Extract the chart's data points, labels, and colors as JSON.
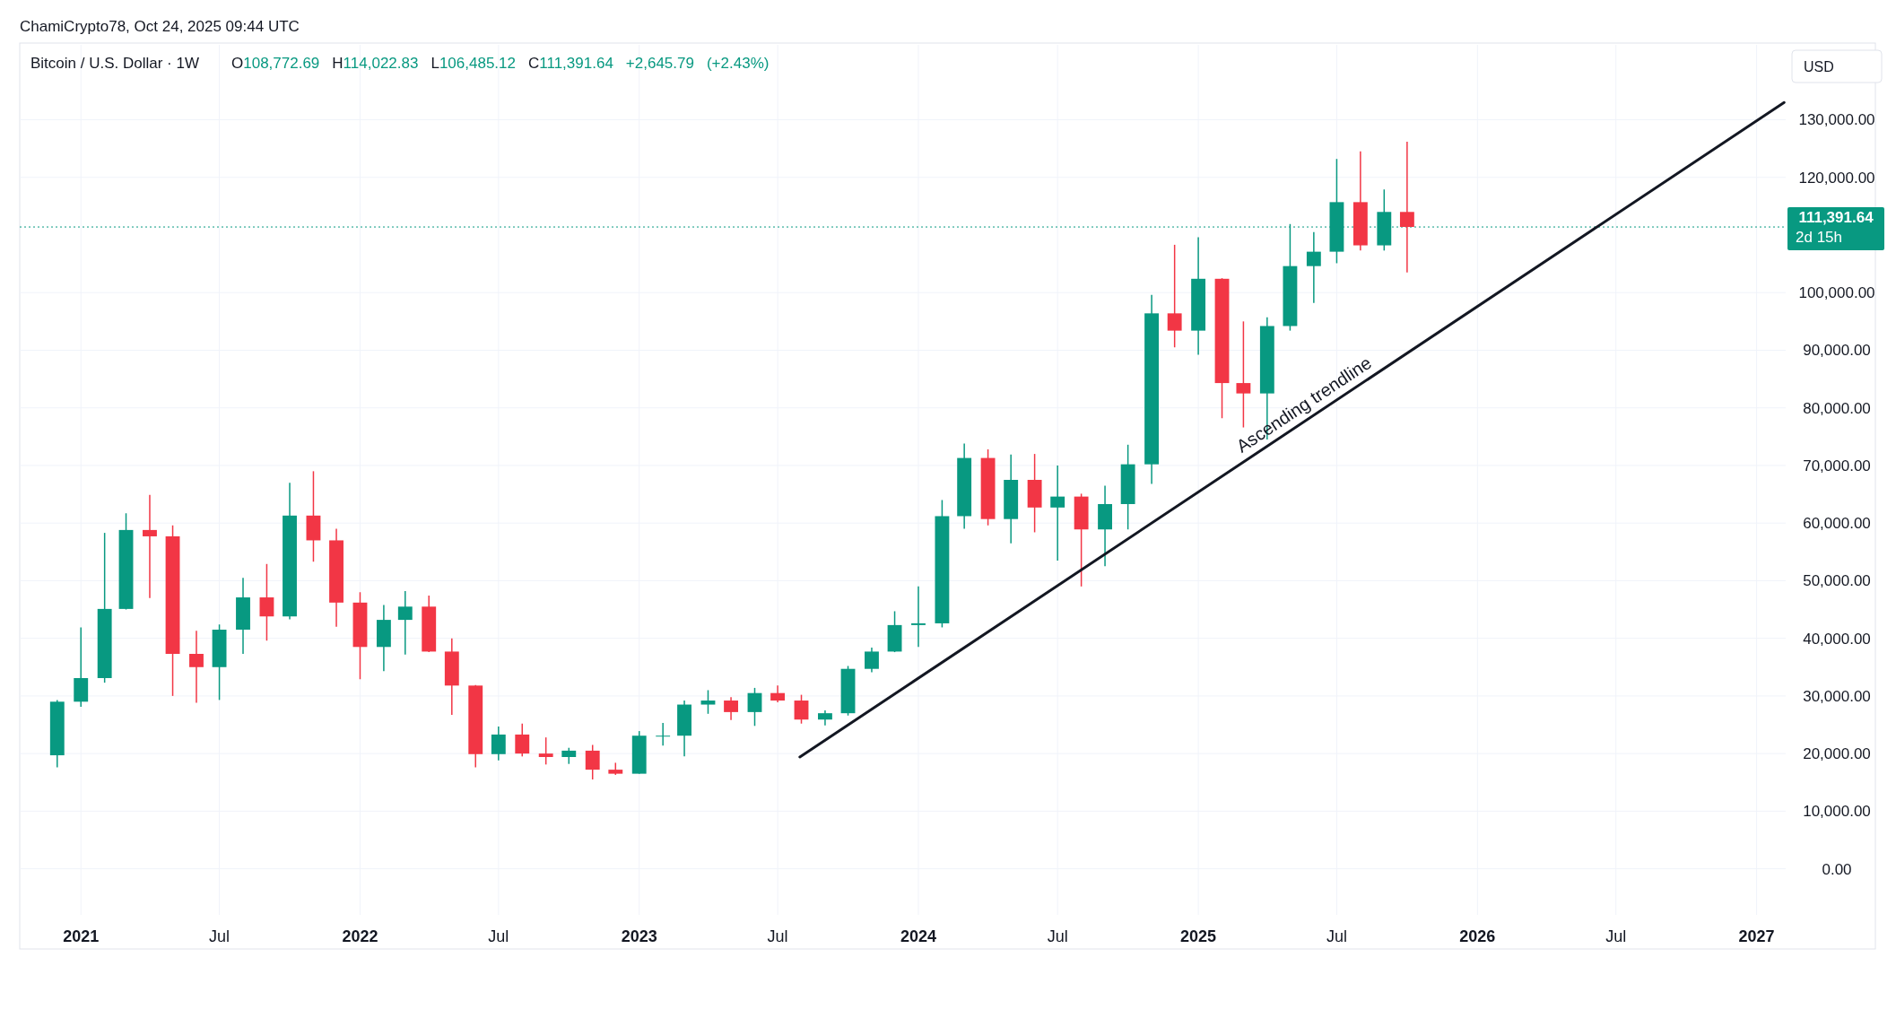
{
  "chart_data": {
    "type": "candlestick",
    "title": "Bitcoin / U.S. Dollar · 1W",
    "subtitle": "O108,772.69 H114,022.83 L106,485.12 C111,391.64 +2,645.79 (+2.43%)",
    "annotations": [
      "ChamiCrypto78, Oct 24, 2025 09:44 UTC",
      "USD",
      "2d 15h",
      {
        "text": "Ascending trendline",
        "x": "2025-05-30",
        "y": 78400
      }
    ],
    "x": [
      "2020-12-01",
      "2021-01-01",
      "2021-02-01",
      "2021-03-01",
      "2021-04-01",
      "2021-05-01",
      "2021-06-01",
      "2021-07-01",
      "2021-08-01",
      "2021-09-01",
      "2021-10-01",
      "2021-11-01",
      "2021-12-01",
      "2022-01-01",
      "2022-02-01",
      "2022-03-01",
      "2022-04-01",
      "2022-05-01",
      "2022-06-01",
      "2022-07-01",
      "2022-08-01",
      "2022-09-01",
      "2022-10-01",
      "2022-11-01",
      "2022-12-01",
      "2023-01-01",
      "2023-02-01",
      "2023-03-01",
      "2023-04-01",
      "2023-05-01",
      "2023-06-01",
      "2023-07-01",
      "2023-08-01",
      "2023-09-01",
      "2023-10-01",
      "2023-11-01",
      "2023-12-01",
      "2024-01-01",
      "2024-02-01",
      "2024-03-01",
      "2024-04-01",
      "2024-05-01",
      "2024-06-01",
      "2024-07-01",
      "2024-08-01",
      "2024-09-01",
      "2024-10-01",
      "2024-11-01",
      "2024-12-01",
      "2025-01-01",
      "2025-02-01",
      "2025-03-01",
      "2025-04-01",
      "2025-05-01",
      "2025-06-01",
      "2025-07-01",
      "2025-08-01",
      "2025-09-01",
      "2025-10-01"
    ],
    "ohlc": [
      [
        19700,
        29300,
        17600,
        29000
      ],
      [
        29000,
        41900,
        28100,
        33100
      ],
      [
        33100,
        58300,
        32300,
        45100
      ],
      [
        45100,
        61700,
        45000,
        58800
      ],
      [
        58800,
        64900,
        47000,
        57700
      ],
      [
        57700,
        59600,
        30000,
        37300
      ],
      [
        37300,
        41300,
        28800,
        35000
      ],
      [
        35000,
        42400,
        29300,
        41500
      ],
      [
        41500,
        50500,
        37300,
        47100
      ],
      [
        47100,
        52900,
        39600,
        43800
      ],
      [
        43800,
        67000,
        43300,
        61300
      ],
      [
        61300,
        69000,
        53300,
        57000
      ],
      [
        57000,
        59000,
        42000,
        46200
      ],
      [
        46200,
        48000,
        32900,
        38500
      ],
      [
        38500,
        45800,
        34300,
        43200
      ],
      [
        43200,
        48200,
        37200,
        45500
      ],
      [
        45500,
        47400,
        37600,
        37700
      ],
      [
        37700,
        40000,
        26700,
        31800
      ],
      [
        31800,
        31900,
        17600,
        19900
      ],
      [
        19900,
        24700,
        18800,
        23300
      ],
      [
        23300,
        25200,
        19500,
        20000
      ],
      [
        20000,
        22800,
        18100,
        19400
      ],
      [
        19400,
        21000,
        18200,
        20500
      ],
      [
        20500,
        21500,
        15500,
        17200
      ],
      [
        17200,
        18400,
        16300,
        16500
      ],
      [
        16500,
        23900,
        16500,
        23100
      ],
      [
        23100,
        25300,
        21400,
        23100
      ],
      [
        23100,
        29200,
        19500,
        28500
      ],
      [
        28500,
        31000,
        26900,
        29200
      ],
      [
        29200,
        29800,
        25800,
        27200
      ],
      [
        27200,
        31400,
        24800,
        30500
      ],
      [
        30500,
        31800,
        28900,
        29200
      ],
      [
        29200,
        30200,
        25200,
        25900
      ],
      [
        25900,
        27500,
        24900,
        27000
      ],
      [
        27000,
        35200,
        26600,
        34700
      ],
      [
        34700,
        38400,
        34100,
        37700
      ],
      [
        37700,
        44700,
        37600,
        42300
      ],
      [
        42300,
        49000,
        38500,
        42600
      ],
      [
        42600,
        64000,
        41900,
        61200
      ],
      [
        61200,
        73800,
        59000,
        71300
      ],
      [
        71300,
        72800,
        59600,
        60700
      ],
      [
        60700,
        71900,
        56500,
        67500
      ],
      [
        67500,
        72000,
        58400,
        62700
      ],
      [
        62700,
        70000,
        53500,
        64600
      ],
      [
        64600,
        65100,
        49000,
        58900
      ],
      [
        58900,
        66500,
        52500,
        63300
      ],
      [
        63300,
        73600,
        58900,
        70200
      ],
      [
        70200,
        99600,
        66800,
        96400
      ],
      [
        96400,
        108300,
        90500,
        93400
      ],
      [
        93400,
        109600,
        89200,
        102400
      ],
      [
        102400,
        102500,
        78200,
        84300
      ],
      [
        84300,
        95000,
        76600,
        82500
      ],
      [
        82500,
        95700,
        74500,
        94200
      ],
      [
        94200,
        111900,
        93400,
        104600
      ],
      [
        104600,
        110500,
        98200,
        107100
      ],
      [
        107100,
        123200,
        105100,
        115700
      ],
      [
        115700,
        124500,
        107300,
        108200
      ],
      [
        108200,
        117900,
        107300,
        114000
      ],
      [
        114000,
        126200,
        103500,
        111400
      ]
    ],
    "series": [
      {
        "type": "line",
        "x": [
          "2023-07-30",
          "2027-02-06"
        ],
        "values": [
          19400,
          133000
        ],
        "color": "#131722"
      }
    ],
    "ref_lines": [
      {
        "axis": "y",
        "value": 111391.64,
        "label": "111,391.64",
        "color": "#089981",
        "line_style": "dotted"
      }
    ],
    "xlim": [
      "2020-10-13",
      "2027-02-08"
    ],
    "ylim": [
      -8000,
      143000
    ],
    "xticks": [
      {
        "value": "2021-01-01",
        "label": "2021"
      },
      {
        "value": "2021-07-01",
        "label": "Jul"
      },
      {
        "value": "2022-01-01",
        "label": "2022"
      },
      {
        "value": "2022-07-01",
        "label": "Jul"
      },
      {
        "value": "2023-01-01",
        "label": "2023"
      },
      {
        "value": "2023-07-01",
        "label": "Jul"
      },
      {
        "value": "2024-01-01",
        "label": "2024"
      },
      {
        "value": "2024-07-01",
        "label": "Jul"
      },
      {
        "value": "2025-01-01",
        "label": "2025"
      },
      {
        "value": "2025-07-01",
        "label": "Jul"
      },
      {
        "value": "2026-01-01",
        "label": "2026"
      },
      {
        "value": "2026-07-01",
        "label": "Jul"
      },
      {
        "value": "2027-01-01",
        "label": "2027"
      }
    ],
    "yticks": [
      {
        "value": 0,
        "label": "0.00"
      },
      {
        "value": 10000,
        "label": "10,000.00"
      },
      {
        "value": 20000,
        "label": "20,000.00"
      },
      {
        "value": 30000,
        "label": "30,000.00"
      },
      {
        "value": 40000,
        "label": "40,000.00"
      },
      {
        "value": 50000,
        "label": "50,000.00"
      },
      {
        "value": 60000,
        "label": "60,000.00"
      },
      {
        "value": 70000,
        "label": "70,000.00"
      },
      {
        "value": 80000,
        "label": "80,000.00"
      },
      {
        "value": 90000,
        "label": "90,000.00"
      },
      {
        "value": 100000,
        "label": "100,000.00"
      },
      {
        "value": 120000,
        "label": "120,000.00"
      },
      {
        "value": 130000,
        "label": "130,000.00"
      }
    ],
    "grid": true
  }
}
